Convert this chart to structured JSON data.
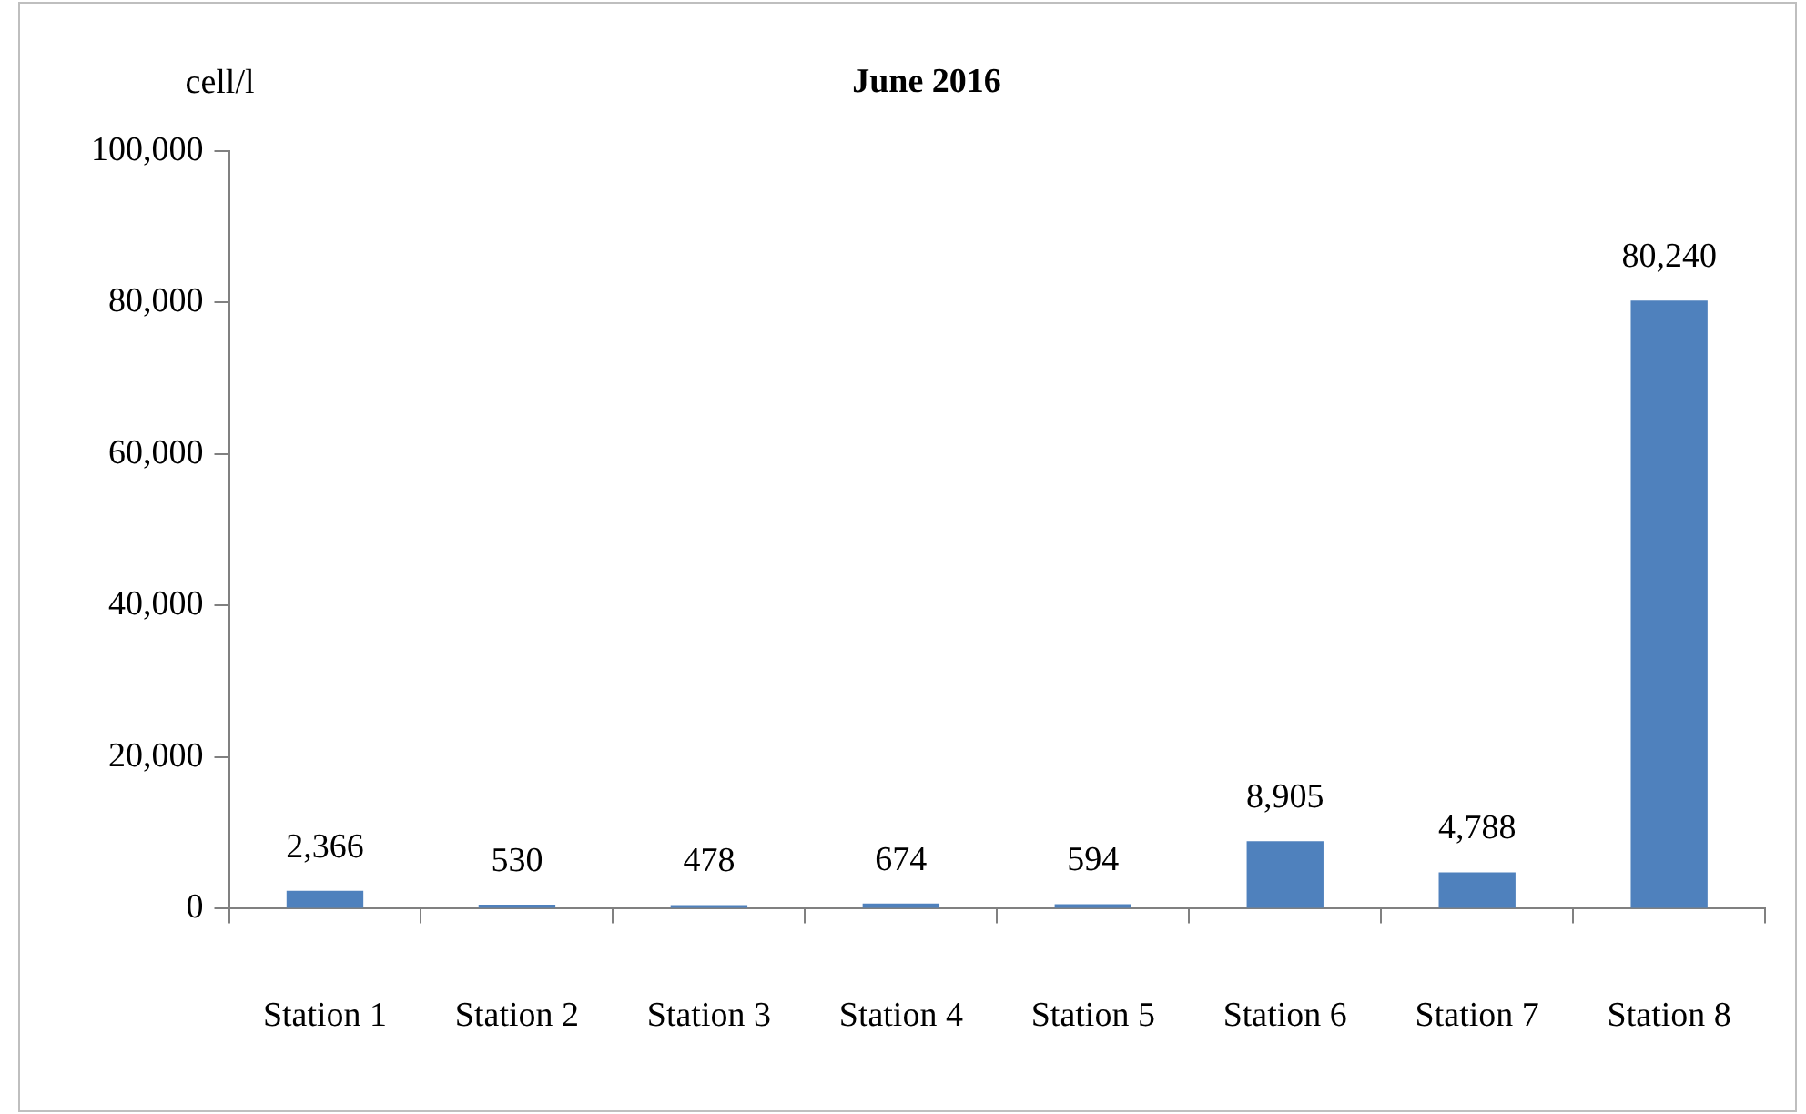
{
  "chart_data": {
    "type": "bar",
    "title": "June 2016",
    "ylabel": "cell/l",
    "categories": [
      "Station 1",
      "Station 2",
      "Station 3",
      "Station 4",
      "Station 5",
      "Station 6",
      "Station 7",
      "Station 8"
    ],
    "values": [
      2366,
      530,
      478,
      674,
      594,
      8905,
      4788,
      80240
    ],
    "color": "#4f81bd",
    "ylim": [
      0,
      100000
    ],
    "yticks": [
      {
        "value": 0,
        "label": "0"
      },
      {
        "value": 20000,
        "label": "20,000"
      },
      {
        "value": 40000,
        "label": "40,000"
      },
      {
        "value": 60000,
        "label": "60,000"
      },
      {
        "value": 80000,
        "label": "80,000"
      },
      {
        "value": 100000,
        "label": "100,000"
      }
    ],
    "value_labels": [
      "2,366",
      "530",
      "478",
      "674",
      "594",
      "8,905",
      "4,788",
      "80,240"
    ],
    "grid": false,
    "legend": false
  }
}
